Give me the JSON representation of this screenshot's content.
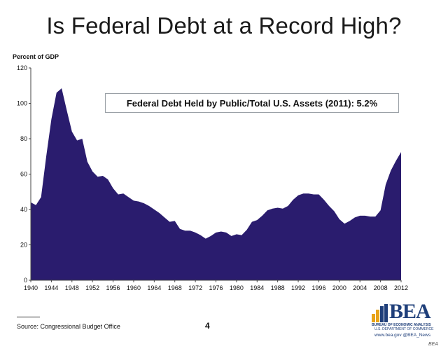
{
  "slide": {
    "title": "Is Federal Debt at a Record High?",
    "source": "Source: Congressional Budget Office",
    "page_number": "4",
    "callout": "Federal Debt Held by Public/Total U.S. Assets (2011): 5.2%"
  },
  "logo": {
    "word": "BEA",
    "line1": "BUREAU OF ECONOMIC ANALYSIS",
    "line2": "U.S. DEPARTMENT OF COMMERCE",
    "web": "www.bea.gov   @BEA_News",
    "tag": "BEA",
    "colors": {
      "navy": "#1f3f7a",
      "gold": "#e8a317"
    }
  },
  "chart_data": {
    "type": "area",
    "ylabel": "Percent of GDP",
    "xlabel": "",
    "xlim": [
      1940,
      2012
    ],
    "ylim": [
      0,
      120
    ],
    "yticks": [
      0,
      20,
      40,
      60,
      80,
      100,
      120
    ],
    "xticks": [
      1940,
      1944,
      1948,
      1952,
      1956,
      1960,
      1964,
      1968,
      1972,
      1976,
      1980,
      1984,
      1988,
      1992,
      1996,
      2000,
      2004,
      2008,
      2012
    ],
    "fill_color": "#2a1c6e",
    "grid": false,
    "x": [
      1940,
      1941,
      1942,
      1943,
      1944,
      1945,
      1946,
      1947,
      1948,
      1949,
      1950,
      1951,
      1952,
      1953,
      1954,
      1955,
      1956,
      1957,
      1958,
      1959,
      1960,
      1961,
      1962,
      1963,
      1964,
      1965,
      1966,
      1967,
      1968,
      1969,
      1970,
      1971,
      1972,
      1973,
      1974,
      1975,
      1976,
      1977,
      1978,
      1979,
      1980,
      1981,
      1982,
      1983,
      1984,
      1985,
      1986,
      1987,
      1988,
      1989,
      1990,
      1991,
      1992,
      1993,
      1994,
      1995,
      1996,
      1997,
      1998,
      1999,
      2000,
      2001,
      2002,
      2003,
      2004,
      2005,
      2006,
      2007,
      2008,
      2009,
      2010,
      2011,
      2012
    ],
    "y": [
      44,
      42.5,
      47,
      70,
      91,
      106,
      108.5,
      96,
      84,
      79,
      80,
      67,
      61.5,
      58.5,
      59,
      57,
      52,
      48.5,
      49,
      47,
      45,
      44.5,
      43.5,
      42,
      40,
      38,
      35.5,
      33,
      33.5,
      29,
      28,
      28,
      27,
      25.5,
      23.5,
      25,
      27,
      27.5,
      27,
      25,
      26,
      25.5,
      28.5,
      33,
      34,
      36.5,
      39.5,
      40.5,
      41,
      40.5,
      42,
      45.5,
      48,
      49,
      49,
      48.5,
      48.5,
      45.5,
      42,
      39,
      34.5,
      32,
      33.5,
      35.5,
      36.5,
      36.5,
      36,
      36,
      39.5,
      54,
      62,
      67.5,
      72.5
    ]
  }
}
